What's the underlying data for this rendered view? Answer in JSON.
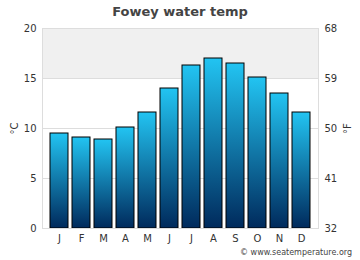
{
  "chart_data": {
    "type": "bar",
    "title": "Fowey water temp",
    "categories": [
      "J",
      "F",
      "M",
      "A",
      "M",
      "J",
      "J",
      "A",
      "S",
      "O",
      "N",
      "D"
    ],
    "values": [
      9.5,
      9.1,
      8.9,
      10.1,
      11.6,
      14.0,
      16.3,
      17.0,
      16.5,
      15.1,
      13.5,
      11.6
    ],
    "color": "#22c4f2",
    "ylim": [
      0,
      20
    ],
    "yticks": [
      0,
      5,
      10,
      15,
      20
    ],
    "y_label": "°C",
    "y2lim": [
      32,
      68
    ],
    "y2ticks": [
      32,
      41,
      50,
      59,
      68
    ],
    "y2_label": "°F",
    "grid": true,
    "highlight_range": [
      15,
      20
    ],
    "caption": "© www.seatemperature.org"
  }
}
